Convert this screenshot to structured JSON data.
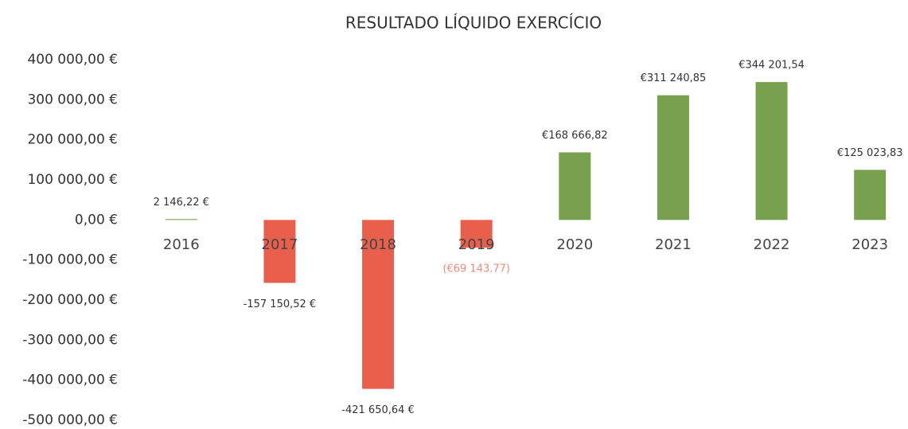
{
  "chart_data": {
    "type": "bar",
    "title": "RESULTADO LÍQUIDO EXERCÍCIO",
    "categories": [
      "2016",
      "2017",
      "2018",
      "2019",
      "2020",
      "2021",
      "2022",
      "2023"
    ],
    "values": [
      2146.22,
      -157150.52,
      -421650.64,
      -69143.77,
      168666.82,
      311240.85,
      344201.54,
      125023.83
    ],
    "value_labels": [
      "2 146,22 €",
      "-157 150,52 €",
      "-421 650,64 €",
      "(€69 143.77)",
      "€168 666,82",
      "€311 240,85",
      "€344 201,54",
      "€125 023,83"
    ],
    "colors": [
      "#77a04f",
      "#e8604c",
      "#e8604c",
      "#e8604c",
      "#77a04f",
      "#77a04f",
      "#77a04f",
      "#77a04f"
    ],
    "value_label_colors": [
      "#333333",
      "#333333",
      "#333333",
      "#f08a78",
      "#333333",
      "#333333",
      "#333333",
      "#333333"
    ],
    "ylim": [
      -500000,
      400000
    ],
    "yticks": [
      {
        "value": 400000,
        "label": "400 000,00 €"
      },
      {
        "value": 300000,
        "label": "300 000,00 €"
      },
      {
        "value": 200000,
        "label": "200 000,00 €"
      },
      {
        "value": 100000,
        "label": "100 000,00 €"
      },
      {
        "value": 0,
        "label": "0,00 €"
      },
      {
        "value": -100000,
        "label": "-100 000,00 €"
      },
      {
        "value": -200000,
        "label": "-200 000,00 €"
      },
      {
        "value": -300000,
        "label": "-300 000,00 €"
      },
      {
        "value": -400000,
        "label": "-400 000,00 €"
      },
      {
        "value": -500000,
        "label": "-500 000,00 €"
      }
    ],
    "grid": false
  }
}
